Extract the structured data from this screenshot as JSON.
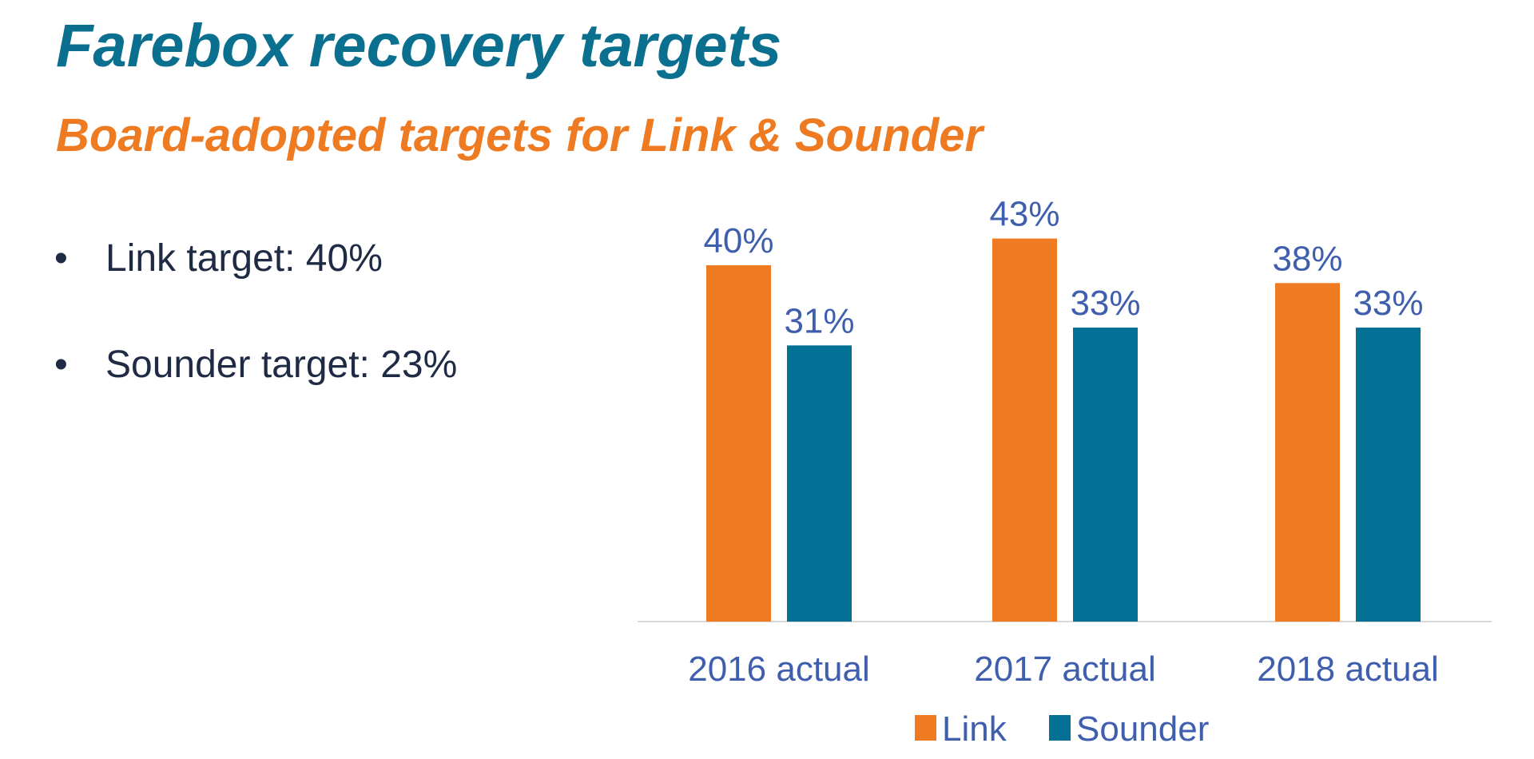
{
  "title": "Farebox recovery targets",
  "subtitle": "Board-adopted targets for Link & Sounder",
  "bullets": [
    {
      "marker": "•",
      "text": "Link target: 40%"
    },
    {
      "marker": "•",
      "text": "Sounder target: 23%"
    }
  ],
  "chart_data": {
    "type": "bar",
    "categories": [
      "2016 actual",
      "2017 actual",
      "2018 actual"
    ],
    "series": [
      {
        "name": "Link",
        "values": [
          40,
          43,
          38
        ],
        "labels": [
          "40%",
          "43%",
          "38%"
        ],
        "color": "#ee7a22"
      },
      {
        "name": "Sounder",
        "values": [
          31,
          33,
          33
        ],
        "labels": [
          "31%",
          "33%",
          "33%"
        ],
        "color": "#037196"
      }
    ],
    "ylim": [
      0,
      50
    ],
    "grid": false,
    "legend": "bottom",
    "label_color": "#3f5fae",
    "axis_color": "#d9d9d9"
  }
}
